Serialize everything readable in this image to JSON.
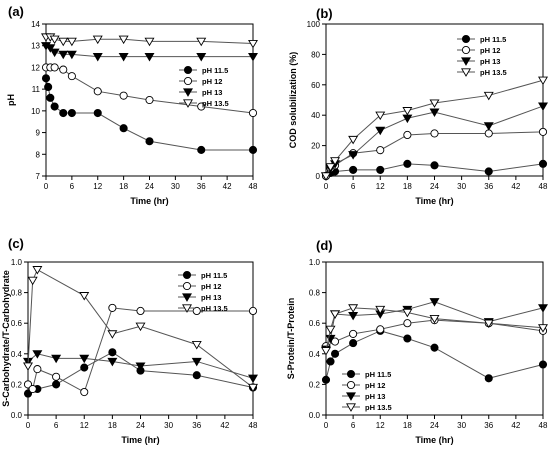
{
  "colors": {
    "axis": "#000000",
    "line": "#555555",
    "filled": "#000000",
    "open": "#ffffff"
  },
  "chart_data": [
    {
      "panel": "(a)",
      "type": "line",
      "xlabel": "Time (hr)",
      "ylabel": "pH",
      "xlim": [
        0,
        48
      ],
      "ylim": [
        7,
        14
      ],
      "xticks": [
        0,
        6,
        12,
        18,
        24,
        30,
        36,
        42,
        48
      ],
      "yticks": [
        7,
        8,
        9,
        10,
        11,
        12,
        13,
        14
      ],
      "legend": "right",
      "series": [
        {
          "name": "pH 11.5",
          "marker": "circle-filled",
          "x": [
            0,
            0.5,
            1,
            2,
            4,
            6,
            12,
            18,
            24,
            36,
            48
          ],
          "y": [
            11.5,
            11.1,
            10.6,
            10.2,
            9.9,
            9.9,
            9.9,
            9.2,
            8.6,
            8.2,
            8.2
          ]
        },
        {
          "name": "pH 12",
          "marker": "circle-open",
          "x": [
            0,
            1,
            2,
            4,
            6,
            12,
            18,
            24,
            36,
            48
          ],
          "y": [
            12.0,
            12.0,
            12.0,
            11.9,
            11.6,
            10.9,
            10.7,
            10.5,
            10.2,
            9.9
          ]
        },
        {
          "name": "pH 13",
          "marker": "triangle-down-filled",
          "x": [
            0,
            1,
            2,
            4,
            6,
            12,
            18,
            24,
            36,
            48
          ],
          "y": [
            13.0,
            12.9,
            12.7,
            12.6,
            12.6,
            12.5,
            12.5,
            12.5,
            12.5,
            12.5
          ]
        },
        {
          "name": "pH 13.5",
          "marker": "triangle-down-open",
          "x": [
            0,
            1,
            2,
            4,
            6,
            12,
            18,
            24,
            36,
            48
          ],
          "y": [
            13.4,
            13.4,
            13.3,
            13.2,
            13.2,
            13.3,
            13.3,
            13.2,
            13.2,
            13.1
          ]
        }
      ]
    },
    {
      "panel": "(b)",
      "type": "line",
      "xlabel": "Time (hr)",
      "ylabel": "COD solubilization (%)",
      "xlim": [
        0,
        48
      ],
      "ylim": [
        0,
        100
      ],
      "xticks": [
        0,
        6,
        12,
        18,
        24,
        30,
        36,
        42,
        48
      ],
      "yticks": [
        0,
        20,
        40,
        60,
        80,
        100
      ],
      "legend": "top-right",
      "series": [
        {
          "name": "pH 11.5",
          "marker": "circle-filled",
          "x": [
            0,
            1,
            2,
            6,
            12,
            18,
            24,
            36,
            48
          ],
          "y": [
            0,
            2,
            3,
            4,
            4,
            8,
            7,
            3,
            8
          ]
        },
        {
          "name": "pH 12",
          "marker": "circle-open",
          "x": [
            0,
            1,
            2,
            6,
            12,
            18,
            24,
            36,
            48
          ],
          "y": [
            0,
            5,
            7,
            15,
            17,
            27,
            28,
            28,
            29
          ]
        },
        {
          "name": "pH 13",
          "marker": "triangle-down-filled",
          "x": [
            0,
            1,
            2,
            6,
            12,
            18,
            24,
            36,
            48
          ],
          "y": [
            0,
            5,
            8,
            14,
            30,
            38,
            42,
            33,
            46
          ]
        },
        {
          "name": "pH 13.5",
          "marker": "triangle-down-open",
          "x": [
            0,
            1,
            2,
            6,
            12,
            18,
            24,
            36,
            48
          ],
          "y": [
            0,
            6,
            10,
            24,
            40,
            43,
            48,
            53,
            63
          ]
        }
      ]
    },
    {
      "panel": "(c)",
      "type": "line",
      "xlabel": "Time (hr)",
      "ylabel": "S-Carbohydrate/T-Carbohydrate",
      "xlim": [
        0,
        48
      ],
      "ylim": [
        0,
        1.0
      ],
      "xticks": [
        0,
        6,
        12,
        18,
        24,
        30,
        36,
        42,
        48
      ],
      "yticks": [
        0.0,
        0.2,
        0.4,
        0.6,
        0.8,
        1.0
      ],
      "legend": "top-right",
      "series": [
        {
          "name": "pH 11.5",
          "marker": "circle-filled",
          "x": [
            0,
            2,
            6,
            12,
            18,
            24,
            36,
            48
          ],
          "y": [
            0.14,
            0.17,
            0.2,
            0.31,
            0.41,
            0.29,
            0.26,
            0.18
          ]
        },
        {
          "name": "pH 12",
          "marker": "circle-open",
          "x": [
            0,
            1,
            2,
            6,
            12,
            18,
            24,
            36,
            48
          ],
          "y": [
            0.2,
            0.17,
            0.3,
            0.25,
            0.15,
            0.7,
            0.68,
            0.68,
            0.68
          ]
        },
        {
          "name": "pH 13",
          "marker": "triangle-down-filled",
          "x": [
            0,
            2,
            6,
            12,
            18,
            24,
            36,
            48
          ],
          "y": [
            0.35,
            0.4,
            0.37,
            0.37,
            0.35,
            0.32,
            0.35,
            0.24
          ]
        },
        {
          "name": "pH 13.5",
          "marker": "triangle-down-open",
          "x": [
            0,
            1,
            2,
            12,
            18,
            24,
            36,
            48
          ],
          "y": [
            0.32,
            0.88,
            0.95,
            0.78,
            0.53,
            0.58,
            0.46,
            0.18
          ]
        }
      ]
    },
    {
      "panel": "(d)",
      "type": "line",
      "xlabel": "Time (hr)",
      "ylabel": "S-Protein/T-Protein",
      "xlim": [
        0,
        48
      ],
      "ylim": [
        0,
        1.0
      ],
      "xticks": [
        0,
        6,
        12,
        18,
        24,
        30,
        36,
        42,
        48
      ],
      "yticks": [
        0.0,
        0.2,
        0.4,
        0.6,
        0.8,
        1.0
      ],
      "legend": "bottom-left",
      "series": [
        {
          "name": "pH 11.5",
          "marker": "circle-filled",
          "x": [
            0,
            1,
            2,
            6,
            12,
            18,
            24,
            36,
            48
          ],
          "y": [
            0.23,
            0.35,
            0.4,
            0.47,
            0.55,
            0.5,
            0.44,
            0.24,
            0.33
          ]
        },
        {
          "name": "pH 12",
          "marker": "circle-open",
          "x": [
            0,
            2,
            6,
            12,
            18,
            24,
            36,
            48
          ],
          "y": [
            0.45,
            0.48,
            0.53,
            0.56,
            0.6,
            0.62,
            0.6,
            0.55
          ]
        },
        {
          "name": "pH 13",
          "marker": "triangle-down-filled",
          "x": [
            0,
            1,
            2,
            6,
            12,
            18,
            24,
            36,
            48
          ],
          "y": [
            0.43,
            0.5,
            0.66,
            0.65,
            0.66,
            0.69,
            0.74,
            0.61,
            0.7
          ]
        },
        {
          "name": "pH 13.5",
          "marker": "triangle-down-open",
          "x": [
            0,
            1,
            2,
            6,
            12,
            18,
            24,
            36,
            48
          ],
          "y": [
            0.42,
            0.56,
            0.66,
            0.7,
            0.69,
            0.67,
            0.63,
            0.6,
            0.57
          ]
        }
      ]
    }
  ]
}
